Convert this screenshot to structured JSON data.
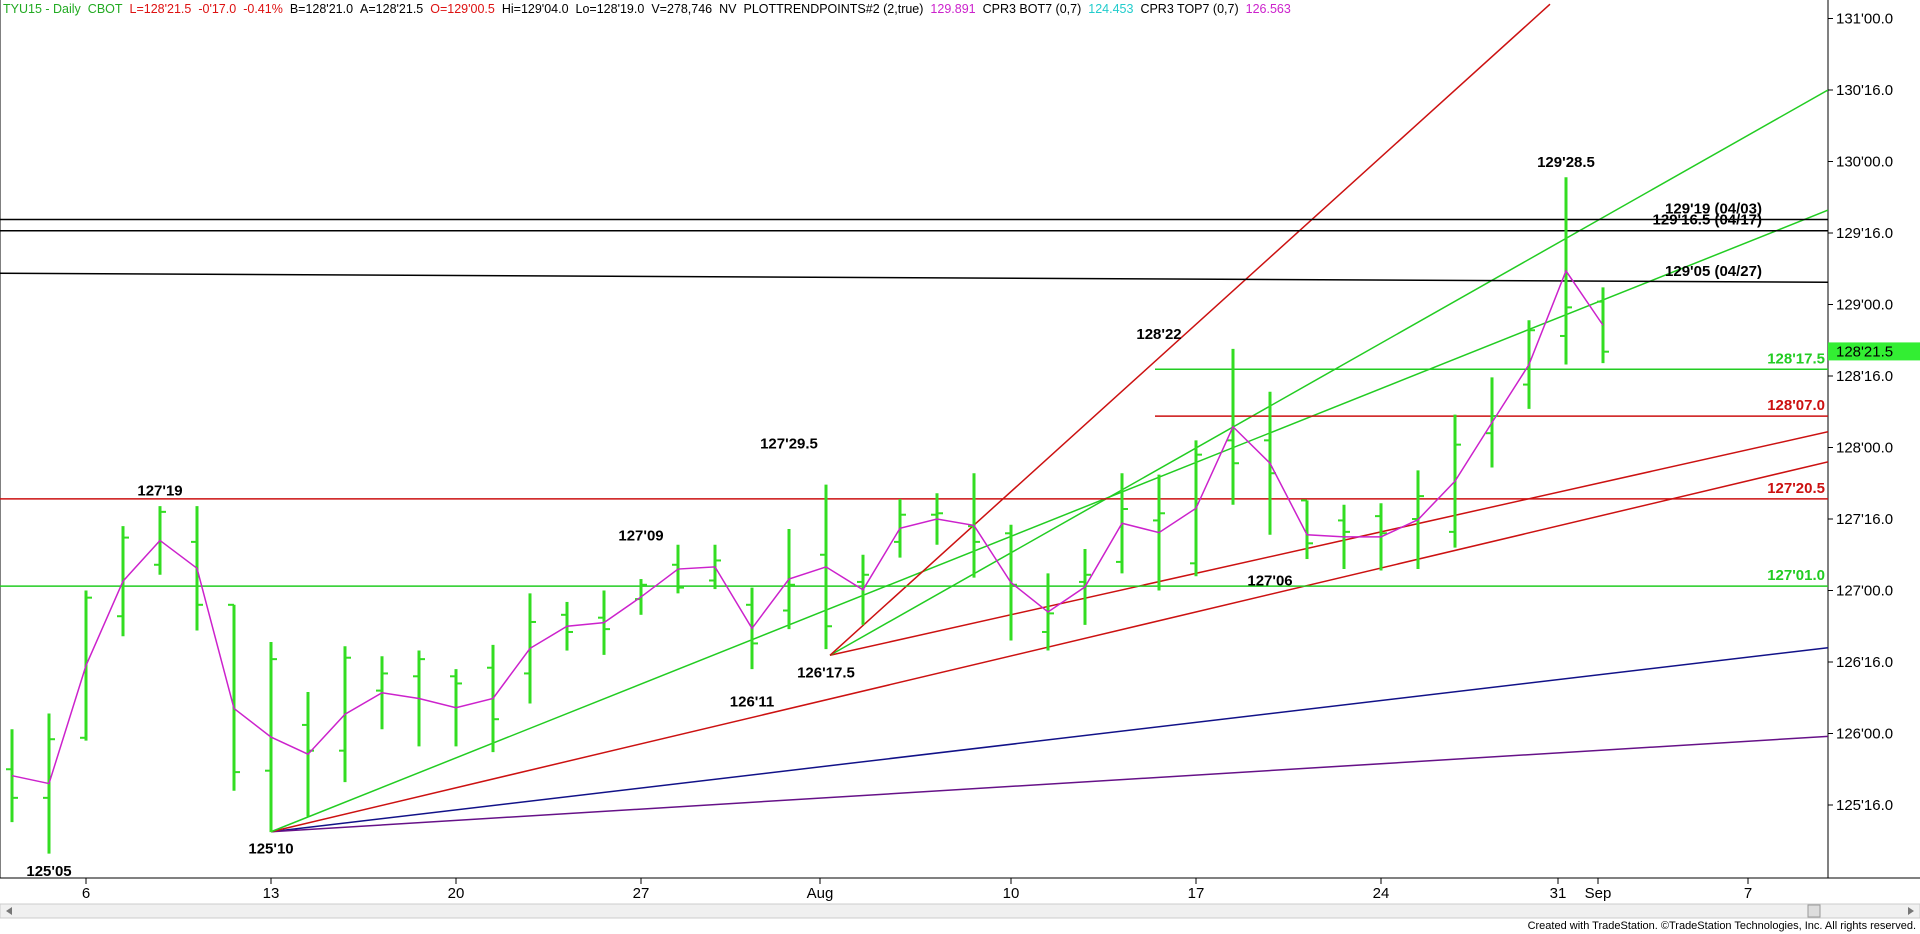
{
  "header": {
    "symbol": "TYU15 - Daily",
    "exchange": "CBOT",
    "last": "L=128'21.5",
    "change": "-0'17.0",
    "change_pct": "-0.41%",
    "bid": "B=128'21.0",
    "ask": "A=128'21.5",
    "open": "O=129'00.5",
    "high": "Hi=129'04.0",
    "low": "Lo=128'19.0",
    "volume": "V=278,746",
    "nv": "NV",
    "indicator1_name": "PLOTTRENDPOINTS#2 (2,true)",
    "indicator1_value": "129.891",
    "indicator2_name": "CPR3 BOT7 (0,7)",
    "indicator2_value": "124.453",
    "indicator3_name": "CPR3 TOP7 (0,7)",
    "indicator3_value": "126.563"
  },
  "footer": "Created with TradeStation. ©TradeStation Technologies, Inc. All rights reserved.",
  "colors": {
    "bar": "#33dd22",
    "swing": "#cc22cc",
    "green_line": "#22cc22",
    "red_line": "#cc1111",
    "blue_line": "#111188",
    "purple_line": "#661188",
    "black_line": "#000000",
    "last_price_bg": "#33ee33",
    "header_green": "#22aa22",
    "header_red": "#dd1111",
    "header_magenta": "#cc22cc",
    "header_cyan": "#22cccc"
  },
  "chart_data": {
    "type": "ohlc-bar",
    "title": "TYU15 - Daily",
    "price_unit": "points and 32nds",
    "y_ticks": [
      "125'16.0",
      "126'00.0",
      "126'16.0",
      "127'00.0",
      "127'16.0",
      "128'00.0",
      "128'16.0",
      "129'00.0",
      "129'16.0",
      "130'00.0",
      "130'16.0",
      "131'00.0"
    ],
    "x_ticks": [
      "6",
      "13",
      "20",
      "27",
      "Aug",
      "10",
      "17",
      "24",
      "31",
      "Sep",
      "7"
    ],
    "last_price_label": "128'21.5",
    "last_price": 128.6719,
    "bars": [
      {
        "date": "Jul 1",
        "o": 125.75,
        "h": 126.03,
        "l": 125.38,
        "c": 125.55
      },
      {
        "date": "Jul 2",
        "o": 125.55,
        "h": 126.14,
        "l": 125.16,
        "c": 125.96
      },
      {
        "date": "Jul 6",
        "o": 125.97,
        "h": 127.0,
        "l": 125.95,
        "c": 126.95
      },
      {
        "date": "Jul 7",
        "o": 126.82,
        "h": 127.45,
        "l": 126.68,
        "c": 127.37
      },
      {
        "date": "Jul 8",
        "o": 127.18,
        "h": 127.59,
        "l": 127.11,
        "c": 127.55
      },
      {
        "date": "Jul 9",
        "o": 127.34,
        "h": 127.59,
        "l": 126.72,
        "c": 126.9
      },
      {
        "date": "Jul 10",
        "o": 126.9,
        "h": 126.75,
        "l": 125.6,
        "c": 125.73
      },
      {
        "date": "Jul 13",
        "o": 125.74,
        "h": 126.64,
        "l": 125.31,
        "c": 126.52
      },
      {
        "date": "Jul 14",
        "o": 126.06,
        "h": 126.29,
        "l": 125.42,
        "c": 125.88
      },
      {
        "date": "Jul 15",
        "o": 125.88,
        "h": 126.61,
        "l": 125.66,
        "c": 126.53
      },
      {
        "date": "Jul 16",
        "o": 126.3,
        "h": 126.54,
        "l": 126.03,
        "c": 126.42
      },
      {
        "date": "Jul 17",
        "o": 126.4,
        "h": 126.58,
        "l": 125.91,
        "c": 126.52
      },
      {
        "date": "Jul 20",
        "o": 126.4,
        "h": 126.45,
        "l": 125.91,
        "c": 126.35
      },
      {
        "date": "Jul 21",
        "o": 126.46,
        "h": 126.62,
        "l": 125.87,
        "c": 126.1
      },
      {
        "date": "Jul 22",
        "o": 126.42,
        "h": 126.98,
        "l": 126.21,
        "c": 126.78
      },
      {
        "date": "Jul 23",
        "o": 126.83,
        "h": 126.92,
        "l": 126.58,
        "c": 126.71
      },
      {
        "date": "Jul 24",
        "o": 126.81,
        "h": 127.0,
        "l": 126.55,
        "c": 126.73
      },
      {
        "date": "Jul 27",
        "o": 126.94,
        "h": 127.08,
        "l": 126.83,
        "c": 127.04
      },
      {
        "date": "Jul 28",
        "o": 127.18,
        "h": 127.32,
        "l": 126.98,
        "c": 127.02
      },
      {
        "date": "Jul 29",
        "o": 127.07,
        "h": 127.32,
        "l": 127.01,
        "c": 127.21
      },
      {
        "date": "Jul 30",
        "o": 126.9,
        "h": 127.02,
        "l": 126.45,
        "c": 126.63
      },
      {
        "date": "Jul 31",
        "o": 126.86,
        "h": 127.43,
        "l": 126.73,
        "c": 127.04
      },
      {
        "date": "Aug 3",
        "o": 127.25,
        "h": 127.74,
        "l": 126.59,
        "c": 126.75
      },
      {
        "date": "Aug 4",
        "o": 127.06,
        "h": 127.25,
        "l": 126.76,
        "c": 127.11
      },
      {
        "date": "Aug 5",
        "o": 127.34,
        "h": 127.64,
        "l": 127.23,
        "c": 127.53
      },
      {
        "date": "Aug 6",
        "o": 127.53,
        "h": 127.68,
        "l": 127.32,
        "c": 127.54
      },
      {
        "date": "Aug 7",
        "o": 127.45,
        "h": 127.82,
        "l": 127.09,
        "c": 127.34
      },
      {
        "date": "Aug 10",
        "o": 127.4,
        "h": 127.46,
        "l": 126.65,
        "c": 127.04
      },
      {
        "date": "Aug 11",
        "o": 126.71,
        "h": 127.12,
        "l": 126.58,
        "c": 126.84
      },
      {
        "date": "Aug 12",
        "o": 127.06,
        "h": 127.29,
        "l": 126.76,
        "c": 127.11
      },
      {
        "date": "Aug 13",
        "o": 127.2,
        "h": 127.82,
        "l": 127.12,
        "c": 127.57
      },
      {
        "date": "Aug 14",
        "o": 127.49,
        "h": 127.81,
        "l": 127.0,
        "c": 127.54
      },
      {
        "date": "Aug 17",
        "o": 127.19,
        "h": 128.05,
        "l": 127.1,
        "c": 127.95
      },
      {
        "date": "Aug 18",
        "o": 128.05,
        "h": 128.69,
        "l": 127.6,
        "c": 127.89
      },
      {
        "date": "Aug 19",
        "o": 128.05,
        "h": 128.39,
        "l": 127.39,
        "c": 127.82
      },
      {
        "date": "Aug 20",
        "o": 127.63,
        "h": 127.56,
        "l": 127.22,
        "c": 127.33
      },
      {
        "date": "Aug 21",
        "o": 127.49,
        "h": 127.6,
        "l": 127.15,
        "c": 127.41
      },
      {
        "date": "Aug 24",
        "o": 127.52,
        "h": 127.61,
        "l": 127.14,
        "c": 127.4
      },
      {
        "date": "Aug 25",
        "o": 127.5,
        "h": 127.84,
        "l": 127.15,
        "c": 127.66
      },
      {
        "date": "Aug 26",
        "o": 127.41,
        "h": 128.23,
        "l": 127.3,
        "c": 128.02
      },
      {
        "date": "Aug 27",
        "o": 128.1,
        "h": 128.49,
        "l": 127.86,
        "c": 128.22
      },
      {
        "date": "Aug 28",
        "o": 128.44,
        "h": 128.89,
        "l": 128.27,
        "c": 128.82
      },
      {
        "date": "Aug 31",
        "o": 128.78,
        "h": 129.89,
        "l": 128.58,
        "c": 128.98
      },
      {
        "date": "Sep 1",
        "o": 129.02,
        "h": 129.12,
        "l": 128.59,
        "c": 128.67
      }
    ],
    "swing_points": [
      {
        "label": "125'05",
        "value": 125.156
      },
      {
        "label": "127'19",
        "value": 127.594
      },
      {
        "label": "125'10",
        "value": 125.313
      },
      {
        "label": "127'09",
        "value": 127.281
      },
      {
        "label": "126'11",
        "value": 126.344
      },
      {
        "label": "127'29.5",
        "value": 127.922
      },
      {
        "label": "126'17.5",
        "value": 126.547
      },
      {
        "label": "128'22",
        "value": 128.688
      },
      {
        "label": "127'06",
        "value": 127.188
      },
      {
        "label": "129'28.5",
        "value": 129.891
      }
    ],
    "levels": [
      {
        "label": "129'19 (04/03)",
        "value": 129.594,
        "color": "black"
      },
      {
        "label": "129'16.5 (04/17)",
        "value": 129.516,
        "color": "black"
      },
      {
        "label": "129'05 (04/27)",
        "value": 129.156,
        "color": "black"
      },
      {
        "label": "128'17.5",
        "value": 128.547,
        "color": "green"
      },
      {
        "label": "128'07.0",
        "value": 128.219,
        "color": "red"
      },
      {
        "label": "127'20.5",
        "value": 127.641,
        "color": "red"
      },
      {
        "label": "127'01.0",
        "value": 127.031,
        "color": "green"
      }
    ]
  }
}
